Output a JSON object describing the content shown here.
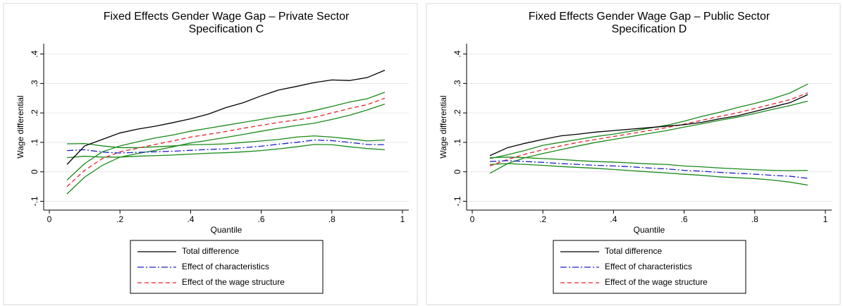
{
  "chart_data": [
    {
      "type": "line",
      "title": "Fixed Effects Gender Wage Gap – Private Sector",
      "subtitle": "Specification C",
      "x_label": "Quantile",
      "y_label": "Wage differential",
      "x": [
        0.05,
        0.1,
        0.15,
        0.2,
        0.25,
        0.3,
        0.35,
        0.4,
        0.45,
        0.5,
        0.55,
        0.6,
        0.65,
        0.7,
        0.75,
        0.8,
        0.85,
        0.9,
        0.95
      ],
      "xlim": [
        -0.016,
        1.018
      ],
      "ylim": [
        -0.13,
        0.435
      ],
      "xticks": [
        0,
        {
          "value": 0.2,
          "label": ".2"
        },
        {
          "value": 0.4,
          "label": ".4"
        },
        {
          "value": 0.6,
          "label": ".6"
        },
        {
          "value": 0.8,
          "label": ".8"
        },
        1
      ],
      "yticks": [
        {
          "value": -0.1,
          "label": "-.1"
        },
        0,
        {
          "value": 0.1,
          "label": ".1"
        },
        {
          "value": 0.2,
          "label": ".2"
        },
        {
          "value": 0.3,
          "label": ".3"
        },
        {
          "value": 0.4,
          "label": ".4"
        }
      ],
      "grid": true,
      "legend": "bottom",
      "series": [
        {
          "name": "Total difference",
          "color": "#000000",
          "style": "solid",
          "values": [
            0.025,
            0.088,
            0.11,
            0.132,
            0.145,
            0.155,
            0.167,
            0.18,
            0.196,
            0.218,
            0.235,
            0.258,
            0.278,
            0.29,
            0.303,
            0.312,
            0.31,
            0.32,
            0.345
          ]
        },
        {
          "name": "Effect of characteristics",
          "color": "#1f1fd0",
          "style": "dashdot",
          "values": [
            0.072,
            0.075,
            0.067,
            0.064,
            0.066,
            0.068,
            0.07,
            0.073,
            0.076,
            0.078,
            0.082,
            0.087,
            0.094,
            0.1,
            0.108,
            0.106,
            0.1,
            0.093,
            0.092
          ]
        },
        {
          "name": "Effect of the wage structure",
          "color": "#e8202a",
          "style": "dash",
          "values": [
            -0.05,
            0.005,
            0.045,
            0.068,
            0.08,
            0.093,
            0.105,
            0.118,
            0.127,
            0.137,
            0.148,
            0.158,
            0.168,
            0.176,
            0.185,
            0.2,
            0.215,
            0.228,
            0.25
          ]
        },
        {
          "color": "#1a8a1a",
          "style": "solid",
          "values": [
            0.095,
            0.096,
            0.088,
            0.082,
            0.082,
            0.085,
            0.088,
            0.092,
            0.093,
            0.095,
            0.1,
            0.105,
            0.11,
            0.118,
            0.122,
            0.118,
            0.112,
            0.105,
            0.108
          ]
        },
        {
          "color": "#1a8a1a",
          "style": "solid",
          "values": [
            0.048,
            0.053,
            0.05,
            0.05,
            0.053,
            0.055,
            0.057,
            0.06,
            0.063,
            0.065,
            0.068,
            0.072,
            0.078,
            0.085,
            0.093,
            0.092,
            0.085,
            0.079,
            0.075
          ]
        },
        {
          "color": "#1a8a1a",
          "style": "solid",
          "values": [
            -0.028,
            0.028,
            0.068,
            0.088,
            0.102,
            0.115,
            0.125,
            0.138,
            0.148,
            0.158,
            0.168,
            0.178,
            0.188,
            0.196,
            0.208,
            0.222,
            0.237,
            0.248,
            0.27
          ]
        },
        {
          "color": "#1a8a1a",
          "style": "solid",
          "values": [
            -0.075,
            -0.018,
            0.022,
            0.05,
            0.062,
            0.073,
            0.085,
            0.098,
            0.107,
            0.117,
            0.127,
            0.138,
            0.148,
            0.157,
            0.165,
            0.178,
            0.192,
            0.21,
            0.23
          ]
        }
      ]
    },
    {
      "type": "line",
      "title": "Fixed Effects Gender Wage Gap – Public Sector",
      "subtitle": "Specification D",
      "x_label": "Quantile",
      "y_label": "Wage differential",
      "x": [
        0.05,
        0.1,
        0.15,
        0.2,
        0.25,
        0.3,
        0.35,
        0.4,
        0.45,
        0.5,
        0.55,
        0.6,
        0.65,
        0.7,
        0.75,
        0.8,
        0.85,
        0.9,
        0.95
      ],
      "xlim": [
        -0.016,
        1.018
      ],
      "ylim": [
        -0.13,
        0.435
      ],
      "xticks": [
        0,
        {
          "value": 0.2,
          "label": ".2"
        },
        {
          "value": 0.4,
          "label": ".4"
        },
        {
          "value": 0.6,
          "label": ".6"
        },
        {
          "value": 0.8,
          "label": ".8"
        },
        1
      ],
      "yticks": [
        {
          "value": -0.1,
          "label": "-.1"
        },
        0,
        {
          "value": 0.1,
          "label": ".1"
        },
        {
          "value": 0.2,
          "label": ".2"
        },
        {
          "value": 0.3,
          "label": ".3"
        },
        {
          "value": 0.4,
          "label": ".4"
        }
      ],
      "grid": true,
      "legend": "bottom",
      "series": [
        {
          "name": "Total difference",
          "color": "#000000",
          "style": "solid",
          "values": [
            0.055,
            0.082,
            0.097,
            0.11,
            0.122,
            0.128,
            0.135,
            0.14,
            0.145,
            0.15,
            0.155,
            0.16,
            0.168,
            0.18,
            0.19,
            0.205,
            0.22,
            0.235,
            0.262
          ]
        },
        {
          "name": "Effect of characteristics",
          "color": "#1f1fd0",
          "style": "dashdot",
          "values": [
            0.035,
            0.038,
            0.035,
            0.032,
            0.028,
            0.025,
            0.022,
            0.02,
            0.017,
            0.013,
            0.01,
            0.005,
            0.002,
            -0.002,
            -0.005,
            -0.008,
            -0.012,
            -0.015,
            -0.022
          ]
        },
        {
          "name": "Effect of the wage structure",
          "color": "#e8202a",
          "style": "dash",
          "values": [
            0.02,
            0.042,
            0.06,
            0.075,
            0.088,
            0.1,
            0.11,
            0.12,
            0.13,
            0.14,
            0.15,
            0.162,
            0.175,
            0.188,
            0.2,
            0.215,
            0.23,
            0.245,
            0.268
          ]
        },
        {
          "color": "#1a8a1a",
          "style": "solid",
          "values": [
            0.048,
            0.05,
            0.048,
            0.045,
            0.042,
            0.038,
            0.035,
            0.033,
            0.03,
            0.027,
            0.025,
            0.02,
            0.017,
            0.013,
            0.01,
            0.007,
            0.005,
            0.004,
            0.005
          ]
        },
        {
          "color": "#1a8a1a",
          "style": "solid",
          "values": [
            0.025,
            0.028,
            0.025,
            0.022,
            0.018,
            0.015,
            0.012,
            0.008,
            0.004,
            0,
            -0.004,
            -0.008,
            -0.012,
            -0.017,
            -0.02,
            -0.023,
            -0.028,
            -0.035,
            -0.045
          ]
        },
        {
          "color": "#1a8a1a",
          "style": "solid",
          "values": [
            0.045,
            0.058,
            0.073,
            0.09,
            0.1,
            0.11,
            0.12,
            0.128,
            0.138,
            0.148,
            0.158,
            0.172,
            0.188,
            0.202,
            0.218,
            0.232,
            0.248,
            0.268,
            0.298
          ]
        },
        {
          "color": "#1a8a1a",
          "style": "solid",
          "values": [
            -0.005,
            0.028,
            0.048,
            0.062,
            0.075,
            0.088,
            0.1,
            0.11,
            0.12,
            0.13,
            0.14,
            0.152,
            0.163,
            0.175,
            0.185,
            0.198,
            0.212,
            0.225,
            0.24
          ]
        }
      ]
    }
  ]
}
